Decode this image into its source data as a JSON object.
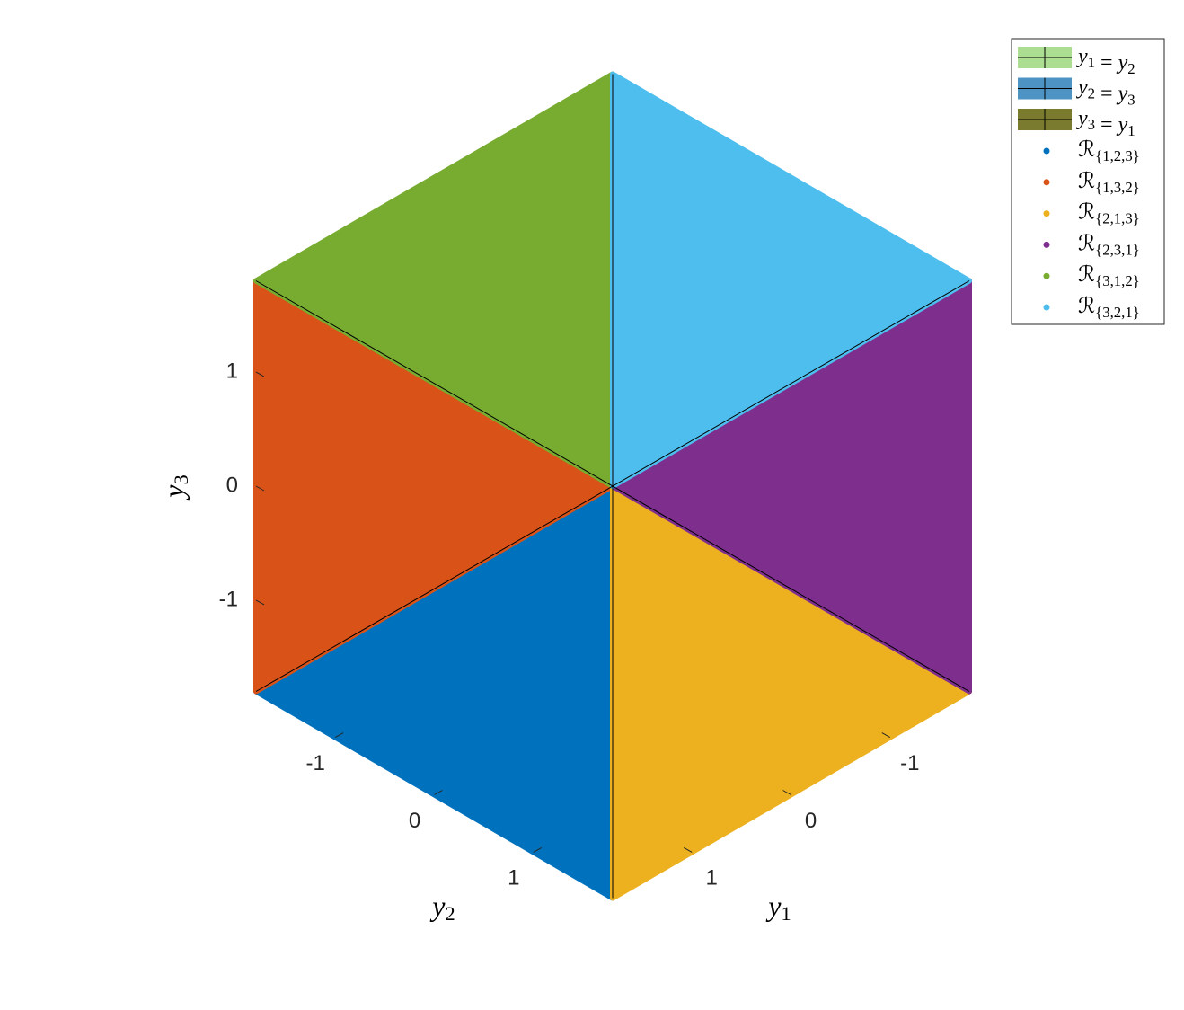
{
  "chart_data": {
    "type": "scatter3d",
    "xlabel": "y1",
    "ylabel": "y2",
    "zlabel": "y3",
    "xlim": [
      -1.8,
      1.8
    ],
    "ylim": [
      -1.8,
      1.8
    ],
    "zlim": [
      -1.8,
      1.8
    ],
    "xticks": [
      -1,
      0,
      1
    ],
    "yticks": [
      -1,
      0,
      1
    ],
    "zticks": [
      -1,
      0,
      1
    ],
    "legend": "northeastoutside",
    "planes": [
      {
        "name": "y1 = y2",
        "color": "#abde90",
        "x": [
          -1.8,
          1.8
        ],
        "y": [
          -1.8,
          1.8
        ],
        "z": [
          1.8,
          -1.8
        ]
      },
      {
        "name": "y2 = y3",
        "color": "#4d93c3",
        "x": [
          1.8,
          -1.8
        ],
        "y": [
          -1.8,
          1.8
        ],
        "z": [
          -1.8,
          1.8
        ]
      },
      {
        "name": "y3 = y1",
        "color": "#7a7b2e",
        "x": [
          1.8,
          -1.8
        ],
        "y": [
          -1.8,
          1.8
        ],
        "z": [
          1.8,
          -1.8
        ]
      }
    ],
    "series": [
      {
        "name": "ℛ{1,2,3}",
        "color": "#0072BD",
        "x": [
          1.8,
          1.8,
          0
        ],
        "y": [
          1.8,
          -1.8,
          0
        ],
        "z": [
          -1.8,
          -1.8,
          0
        ]
      },
      {
        "name": "ℛ{1,3,2}",
        "color": "#D95319",
        "x": [
          1.8,
          1.8,
          0
        ],
        "y": [
          -1.8,
          -1.8,
          0
        ],
        "z": [
          -1.8,
          1.8,
          0
        ]
      },
      {
        "name": "ℛ{2,1,3}",
        "color": "#EDB120",
        "x": [
          1.8,
          -1.8,
          0
        ],
        "y": [
          1.8,
          1.8,
          0
        ],
        "z": [
          -1.8,
          -1.8,
          0
        ]
      },
      {
        "name": "ℛ{2,3,1}",
        "color": "#7E2F8E",
        "x": [
          -1.8,
          -1.8,
          0
        ],
        "y": [
          1.8,
          1.8,
          0
        ],
        "z": [
          -1.8,
          1.8,
          0
        ]
      },
      {
        "name": "ℛ{3,1,2}",
        "color": "#77AC30",
        "x": [
          1.8,
          -1.8,
          0
        ],
        "y": [
          -1.8,
          -1.8,
          0
        ],
        "z": [
          1.8,
          1.8,
          0
        ]
      },
      {
        "name": "ℛ{3,2,1}",
        "color": "#4DBEEE",
        "x": [
          -1.8,
          -1.8,
          0
        ],
        "y": [
          -1.8,
          1.8,
          0
        ],
        "z": [
          1.8,
          1.8,
          0
        ]
      }
    ]
  }
}
